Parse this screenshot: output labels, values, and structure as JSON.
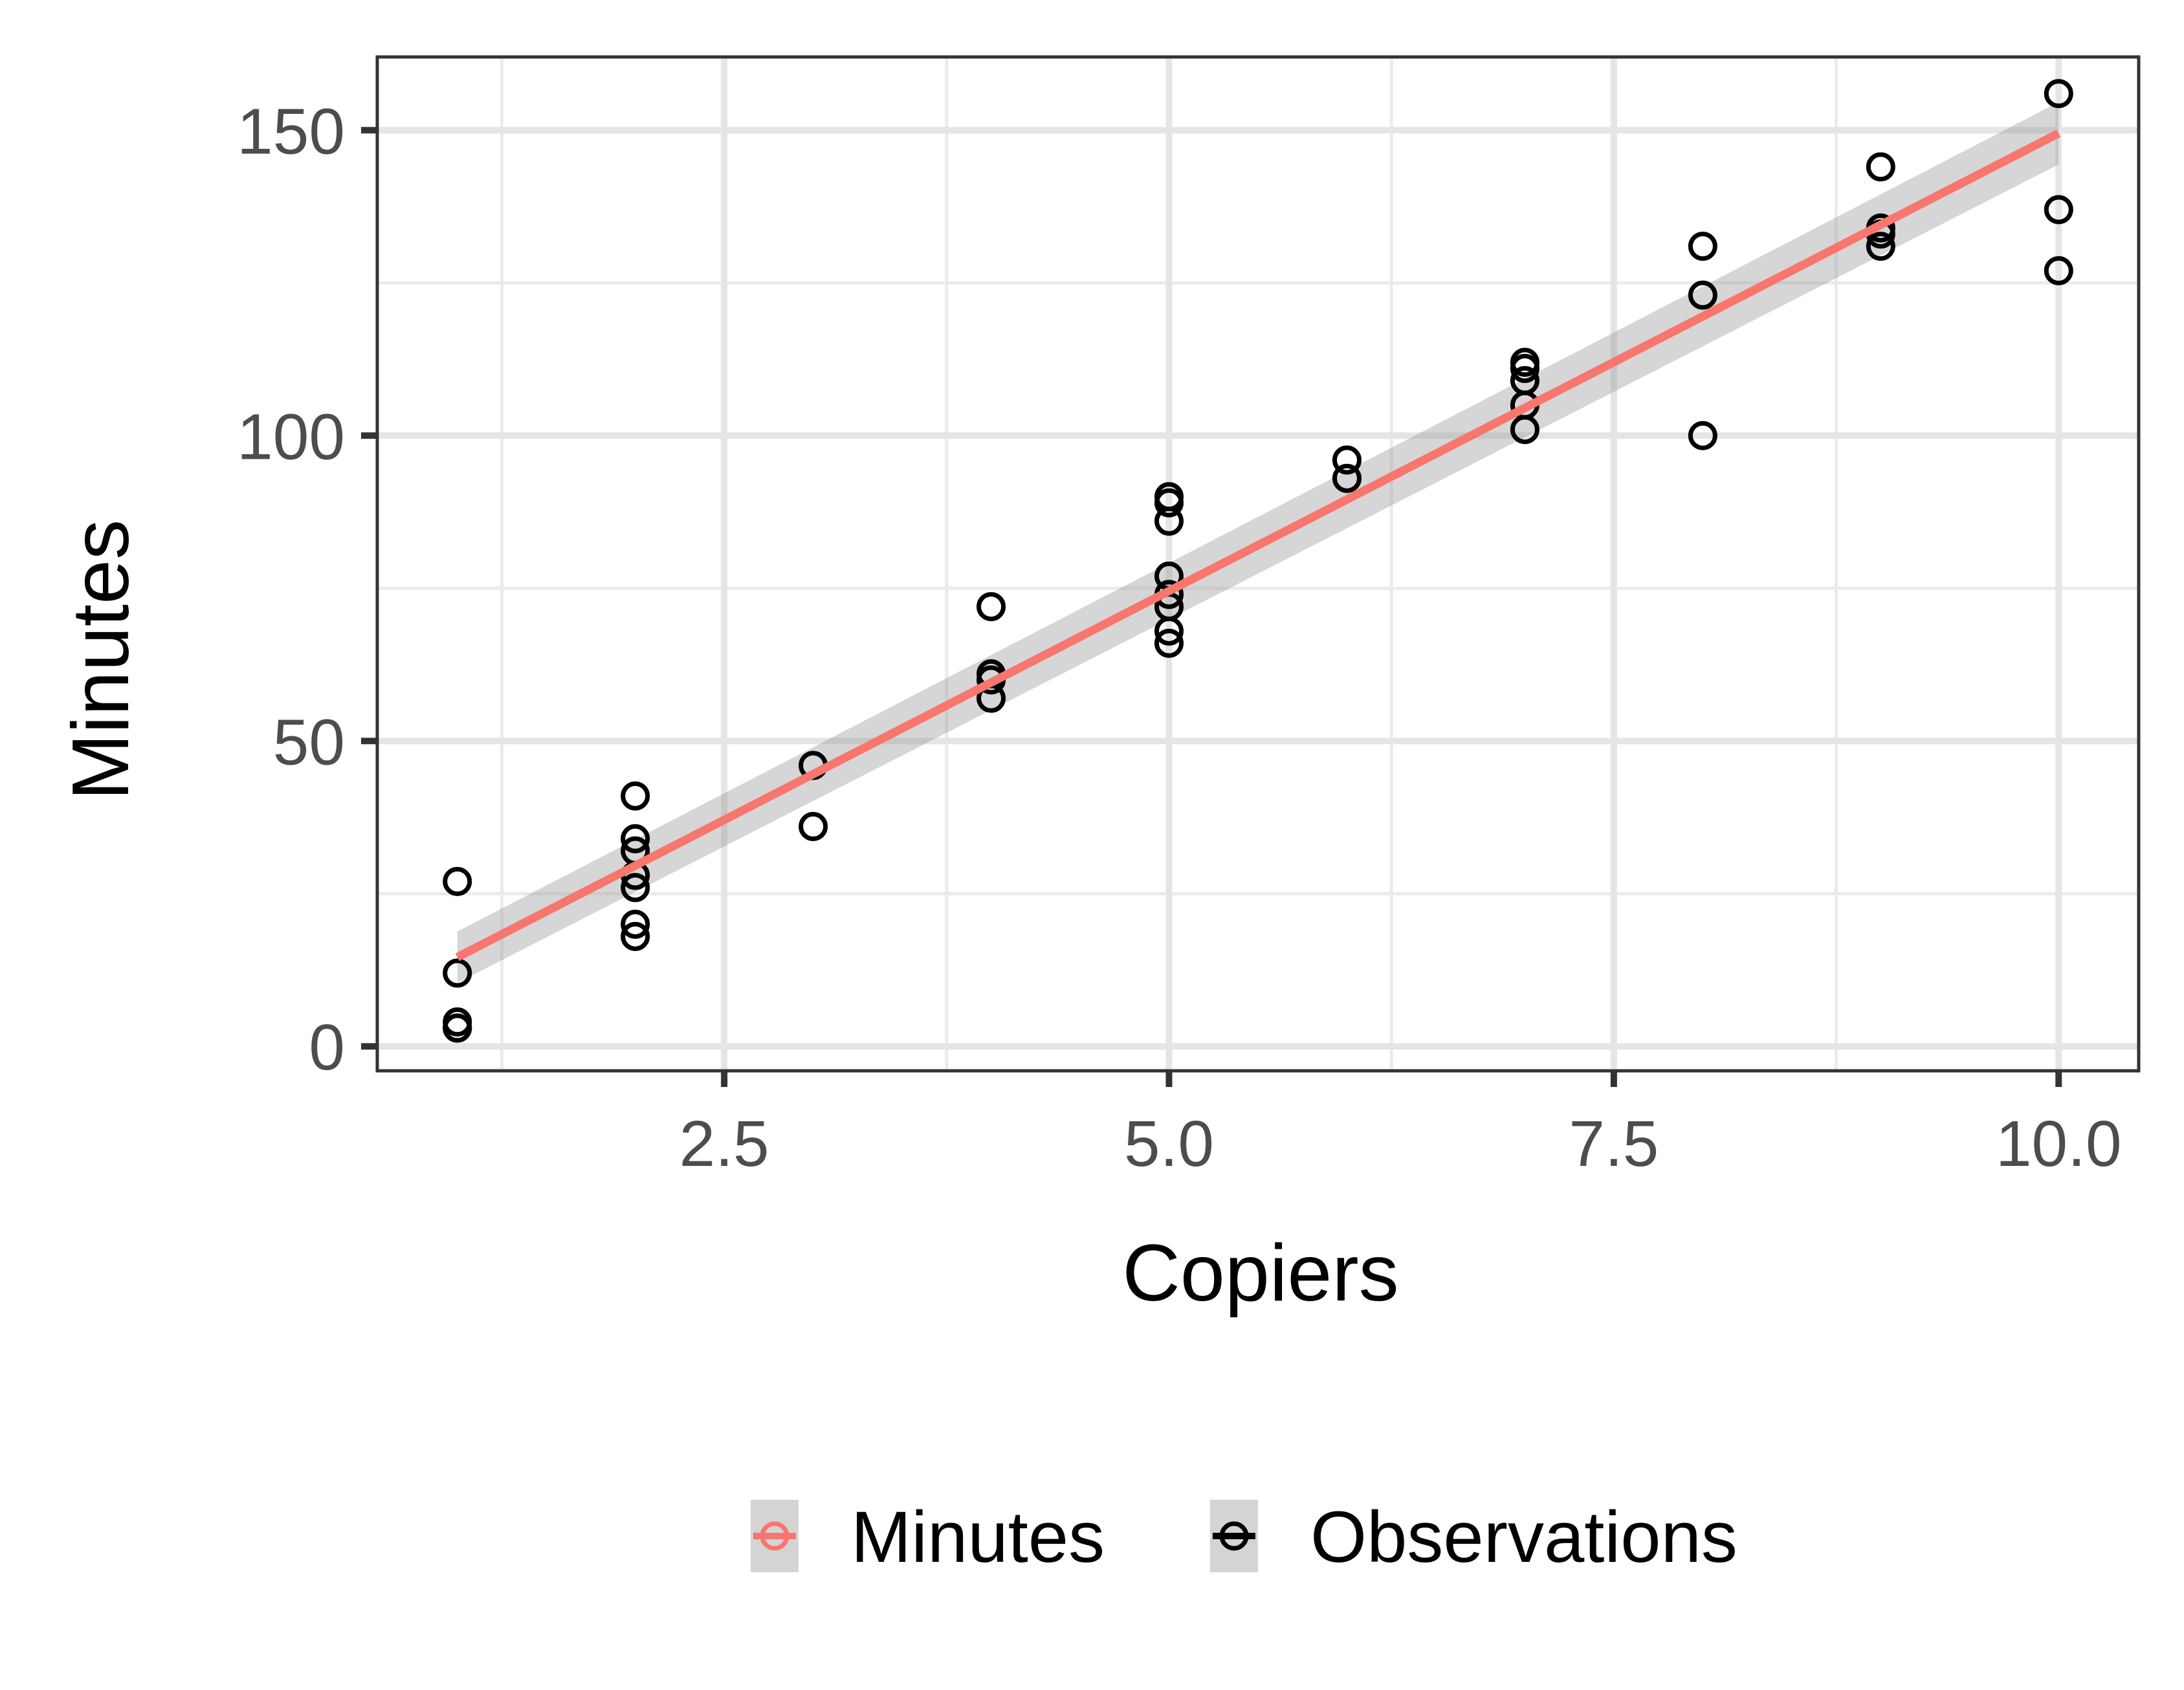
{
  "chart_data": {
    "type": "scatter",
    "xlabel": "Copiers",
    "ylabel": "Minutes",
    "xlim": [
      0.55,
      10.45
    ],
    "ylim": [
      -4,
      162
    ],
    "x_ticks": [
      2.5,
      5.0,
      7.5,
      10.0
    ],
    "x_tick_labels": [
      "2.5",
      "5.0",
      "7.5",
      "10.0"
    ],
    "x_minor_ticks": [
      1.25,
      3.75,
      6.25,
      8.75
    ],
    "y_ticks": [
      0,
      50,
      100,
      150
    ],
    "y_tick_labels": [
      "0",
      "50",
      "100",
      "150"
    ],
    "y_minor_ticks": [
      25,
      75,
      125
    ],
    "grid": true,
    "legend_position": "bottom",
    "series": [
      {
        "name": "Minutes",
        "kind": "regression-line",
        "color": "#F8766D",
        "x": [
          1,
          10
        ],
        "y": [
          14.6,
          149.5
        ],
        "ci_lower": [
          10.4,
          144.4
        ],
        "ci_upper": [
          18.8,
          154.6
        ]
      },
      {
        "name": "Observations",
        "kind": "points",
        "color": "#000000",
        "points": [
          [
            1,
            27
          ],
          [
            1,
            12
          ],
          [
            1,
            4
          ],
          [
            1,
            3
          ],
          [
            1,
            3
          ],
          [
            2,
            41
          ],
          [
            2,
            34
          ],
          [
            2,
            32
          ],
          [
            2,
            28
          ],
          [
            2,
            26
          ],
          [
            2,
            20
          ],
          [
            2,
            18
          ],
          [
            3,
            46
          ],
          [
            3,
            36
          ],
          [
            4,
            72
          ],
          [
            4,
            61
          ],
          [
            4,
            60
          ],
          [
            4,
            57
          ],
          [
            5,
            90
          ],
          [
            5,
            89
          ],
          [
            5,
            86
          ],
          [
            5,
            77
          ],
          [
            5,
            74
          ],
          [
            5,
            72
          ],
          [
            5,
            68
          ],
          [
            5,
            66
          ],
          [
            6,
            96
          ],
          [
            6,
            93
          ],
          [
            7,
            112
          ],
          [
            7,
            111
          ],
          [
            7,
            109
          ],
          [
            7,
            105
          ],
          [
            7,
            101
          ],
          [
            8,
            131
          ],
          [
            8,
            123
          ],
          [
            8,
            100
          ],
          [
            9,
            144
          ],
          [
            9,
            134
          ],
          [
            9,
            133
          ],
          [
            9,
            131
          ],
          [
            10,
            156
          ],
          [
            10,
            137
          ],
          [
            10,
            127
          ]
        ]
      }
    ]
  }
}
